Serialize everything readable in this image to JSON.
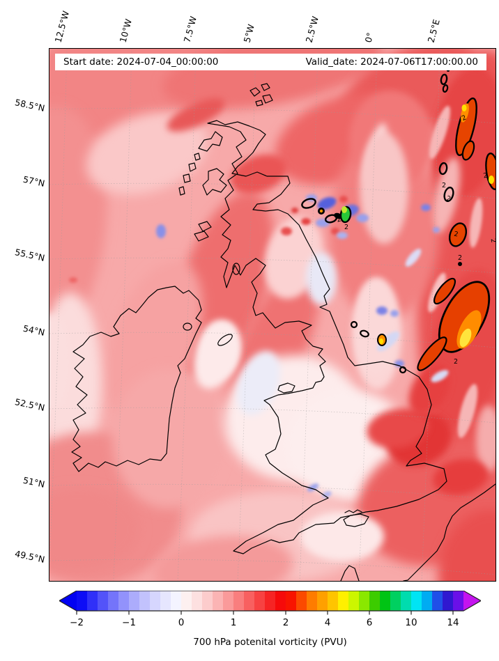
{
  "page": {
    "background": "#ffffff"
  },
  "map": {
    "frame_color": "#000000",
    "base_fill": "#f7a9a9",
    "coastline_color": "#000000",
    "gridline_color": "#9c9c9c",
    "contour_line_label": "2",
    "title_bar": {
      "background": "#ffffff",
      "text_color": "#111111",
      "start": "Start date: 2024-07-04_00:00:00",
      "valid": "Valid_date: 2024-07-06T17:00:00.00"
    },
    "top_axis_labels": [
      "12.5°W",
      "10°W",
      "7.5°W",
      "5°W",
      "2.5°W",
      "0°",
      "2.5°E"
    ],
    "left_axis_labels": [
      "58.5°N",
      "57°N",
      "55.5°N",
      "54°N",
      "52.5°N",
      "51°N",
      "49.5°N"
    ]
  },
  "colorbar": {
    "tick_labels": [
      "−2",
      "−1",
      "0",
      "1",
      "2",
      "4",
      "6",
      "10",
      "14"
    ],
    "under_arrow_color": "#0202f2",
    "over_arrow_color": "#c414ef",
    "outline_color": "#222222",
    "segment_colors": [
      "#0d0df6",
      "#3030f8",
      "#5353f9",
      "#7474fa",
      "#9292fb",
      "#acacfc",
      "#c2c2fd",
      "#d6d6fe",
      "#e6e6fe",
      "#f4f4ff",
      "#fdf0f0",
      "#fde0e0",
      "#fccccc",
      "#fbb4b4",
      "#fa9a9a",
      "#f97e7e",
      "#f86060",
      "#f74242",
      "#f62424",
      "#f60a0a",
      "#f81400",
      "#fb4a00",
      "#fe7c00",
      "#ffa000",
      "#ffc400",
      "#fff000",
      "#ccf600",
      "#8ae800",
      "#3ccc00",
      "#00c414",
      "#00d060",
      "#00dcae",
      "#00e4f4",
      "#00acf2",
      "#2050e8",
      "#3018d0",
      "#6a10e8"
    ]
  },
  "caption": "700 hPa potenital vorticity (PVU)",
  "chart_data": {
    "type": "heatmap",
    "subtype": "filled-contour-map",
    "title": "700 hPa potenital vorticity (PVU)",
    "variable": "700 hPa potential vorticity",
    "units": "PVU",
    "start_date": "2024-07-04_00:00:00",
    "valid_date": "2024-07-06T17:00:00.00",
    "region": "British Isles, Ireland, North Sea and English Channel",
    "x_axis": {
      "label": "longitude",
      "tick_labels": [
        "12.5°W",
        "10°W",
        "7.5°W",
        "5°W",
        "2.5°W",
        "0°",
        "2.5°E"
      ]
    },
    "y_axis": {
      "label": "latitude",
      "tick_labels": [
        "58.5°N",
        "57°N",
        "55.5°N",
        "54°N",
        "52.5°N",
        "51°N",
        "49.5°N"
      ]
    },
    "colorbar": {
      "tick_values": [
        -2,
        -1,
        0,
        1,
        2,
        4,
        6,
        10,
        14
      ],
      "levels_step_between_minus2_and_2": 0.2,
      "extend": "both",
      "contour_overlay_level": 2,
      "legend_position": "bottom"
    },
    "notable_features": [
      "Domain dominated by 0.5-1.5 PVU (pink to red shading)",
      "North-south band of PVU > 2 over the North Sea at the eastern edge, outlined by black 2-PVU contours with orange and yellow cores (~3-5 PVU)",
      "Black contour lines labelled 2",
      "Cluster of small anomalies east of Scotland with blue negative spots and one green maximum (~7 PVU)",
      "Small orange/yellow maximum off the northeast English coast near 54N",
      "Near-zero PVU (white) over central England, the Irish Sea and the Channel"
    ]
  }
}
